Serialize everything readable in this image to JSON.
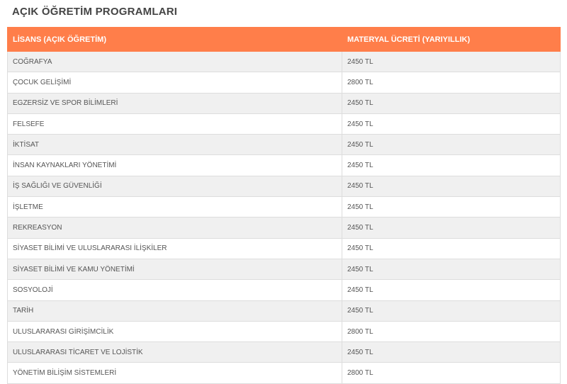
{
  "title": "AÇIK ÖĞRETİM PROGRAMLARI",
  "accent_color": "#ff7e4a",
  "table": {
    "headers": [
      "LİSANS (AÇIK ÖĞRETİM)",
      "MATERYAL ÜCRETİ (YARIYILLIK)"
    ],
    "rows": [
      [
        "COĞRAFYA",
        "2450 TL"
      ],
      [
        "ÇOCUK GELİŞİMİ",
        "2800 TL"
      ],
      [
        "EGZERSİZ VE SPOR BİLİMLERİ",
        "2450 TL"
      ],
      [
        "FELSEFE",
        "2450 TL"
      ],
      [
        "İKTİSAT",
        "2450 TL"
      ],
      [
        "İNSAN KAYNAKLARI YÖNETİMİ",
        "2450 TL"
      ],
      [
        "İŞ SAĞLIĞI VE GÜVENLİĞİ",
        "2450 TL"
      ],
      [
        "İŞLETME",
        "2450 TL"
      ],
      [
        "REKREASYON",
        "2450 TL"
      ],
      [
        "SİYASET BİLİMİ VE ULUSLARARASI İLİŞKİLER",
        "2450 TL"
      ],
      [
        "SİYASET BİLİMİ VE KAMU YÖNETİMİ",
        "2450 TL"
      ],
      [
        "SOSYOLOJİ",
        "2450 TL"
      ],
      [
        "TARİH",
        "2450 TL"
      ],
      [
        "ULUSLARARASI GİRİŞİMCİLİK",
        "2800 TL"
      ],
      [
        "ULUSLARARASI TİCARET VE LOJİSTİK",
        "2450 TL"
      ],
      [
        "YÖNETİM BİLİŞİM SİSTEMLERİ",
        "2800 TL"
      ]
    ]
  }
}
